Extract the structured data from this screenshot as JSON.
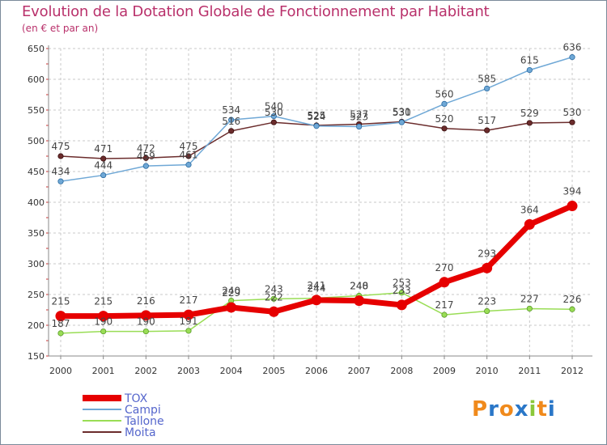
{
  "chart_data": {
    "type": "line",
    "title": "Evolution de la Dotation Globale de Fonctionnement par Habitant",
    "subtitle": "(en € et par an)",
    "categories": [
      "2000",
      "2001",
      "2002",
      "2003",
      "2004",
      "2005",
      "2006",
      "2007",
      "2008",
      "2009",
      "2010",
      "2011",
      "2012"
    ],
    "yticks": [
      150,
      200,
      250,
      300,
      350,
      400,
      450,
      500,
      550,
      600,
      650
    ],
    "ylim": [
      150,
      650
    ],
    "series": [
      {
        "name": "TOX",
        "color": "#e60000",
        "values": [
          215,
          215,
          216,
          217,
          229,
          222,
          241,
          240,
          233,
          270,
          293,
          364,
          394
        ]
      },
      {
        "name": "Campi",
        "color": "#6fa8d6",
        "values": [
          434,
          444,
          459,
          461,
          534,
          540,
          524,
          523,
          530,
          560,
          585,
          615,
          636
        ]
      },
      {
        "name": "Tallone",
        "color": "#99dd55",
        "values": [
          187,
          190,
          190,
          191,
          240,
          243,
          244,
          248,
          253,
          217,
          223,
          227,
          226
        ]
      },
      {
        "name": "Moita",
        "color": "#6b2c2c",
        "values": [
          475,
          471,
          472,
          475,
          516,
          530,
          525,
          527,
          531,
          520,
          517,
          529,
          530
        ]
      }
    ],
    "legend": [
      "TOX",
      "Campi",
      "Tallone",
      "Moita"
    ]
  },
  "logo": {
    "letters": [
      "P",
      "r",
      "o",
      "x",
      "i",
      "t",
      "i"
    ],
    "colors": [
      "#f08a1c",
      "#2a77c8",
      "#f08a1c",
      "#2a77c8",
      "#8bc83a",
      "#f08a1c",
      "#2a77c8"
    ]
  }
}
